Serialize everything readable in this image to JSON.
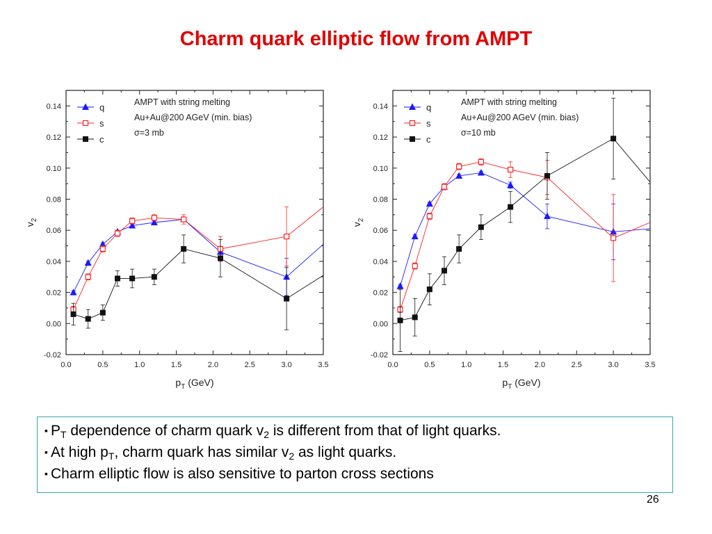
{
  "title": "Charm quark elliptic flow from AMPT",
  "charts": [
    {
      "annotation": [
        "AMPT with string melting",
        "Au+Au@200 AGeV (min. bias)",
        "σ=3 mb"
      ]
    },
    {
      "annotation": [
        "AMPT with string melting",
        "Au+Au@200 AGeV (min. bias)",
        "σ=10 mb"
      ]
    }
  ],
  "chart_data": [
    {
      "type": "line",
      "xlabel": "pT (GeV)",
      "xlabel_main": "p",
      "xlabel_sub": "T",
      "xlabel_rest": " (GeV)",
      "ylabel": "v2",
      "ylabel_main": "v",
      "ylabel_sub": "2",
      "xlim": [
        0.0,
        3.5
      ],
      "ylim": [
        -0.02,
        0.15
      ],
      "xticks": [
        "0.0",
        "0.5",
        "1.0",
        "1.5",
        "2.0",
        "2.5",
        "3.0",
        "3.5"
      ],
      "yticks": [
        "-0.02",
        "0.00",
        "0.02",
        "0.04",
        "0.06",
        "0.08",
        "0.10",
        "0.12",
        "0.14"
      ],
      "legend_position": "top-left",
      "series": [
        {
          "name": "q",
          "color": "#1a1aff",
          "marker": "triangle",
          "x": [
            0.1,
            0.3,
            0.5,
            0.7,
            0.9,
            1.2,
            1.6,
            2.1,
            3.0,
            3.5
          ],
          "y": [
            0.02,
            0.039,
            0.051,
            0.059,
            0.063,
            0.065,
            0.067,
            0.046,
            0.03,
            0.051
          ],
          "err": [
            0.001,
            0.001,
            0.001,
            0.001,
            0.001,
            0.001,
            0.001,
            0.003,
            0.012,
            0
          ]
        },
        {
          "name": "s",
          "color": "#ff2020",
          "marker": "open-square",
          "x": [
            0.1,
            0.3,
            0.5,
            0.7,
            0.9,
            1.2,
            1.6,
            2.1,
            3.0,
            3.5
          ],
          "y": [
            0.009,
            0.03,
            0.048,
            0.058,
            0.066,
            0.068,
            0.067,
            0.048,
            0.056,
            0.075
          ],
          "err": [
            0.002,
            0.002,
            0.002,
            0.002,
            0.002,
            0.002,
            0.003,
            0.008,
            0.019,
            0
          ]
        },
        {
          "name": "c",
          "color": "#111111",
          "marker": "filled-square",
          "x": [
            0.1,
            0.3,
            0.5,
            0.7,
            0.9,
            1.2,
            1.6,
            2.1,
            3.0,
            3.5
          ],
          "y": [
            0.006,
            0.003,
            0.007,
            0.029,
            0.029,
            0.03,
            0.048,
            0.042,
            0.016,
            0.031
          ],
          "err": [
            0.007,
            0.006,
            0.005,
            0.005,
            0.006,
            0.005,
            0.009,
            0.012,
            0.02,
            0
          ]
        }
      ]
    },
    {
      "type": "line",
      "xlabel": "pT (GeV)",
      "xlabel_main": "p",
      "xlabel_sub": "T",
      "xlabel_rest": " (GeV)",
      "ylabel": "v2",
      "ylabel_main": "v",
      "ylabel_sub": "2",
      "xlim": [
        0.0,
        3.5
      ],
      "ylim": [
        -0.02,
        0.15
      ],
      "xticks": [
        "0.0",
        "0.5",
        "1.0",
        "1.5",
        "2.0",
        "2.5",
        "3.0",
        "3.5"
      ],
      "yticks": [
        "-0.02",
        "0.00",
        "0.02",
        "0.04",
        "0.06",
        "0.08",
        "0.10",
        "0.12",
        "0.14"
      ],
      "legend_position": "top-left",
      "series": [
        {
          "name": "q",
          "color": "#1a1aff",
          "marker": "triangle",
          "x": [
            0.1,
            0.3,
            0.5,
            0.7,
            0.9,
            1.2,
            1.6,
            2.1,
            3.0,
            3.5
          ],
          "y": [
            0.024,
            0.056,
            0.077,
            0.088,
            0.095,
            0.097,
            0.089,
            0.069,
            0.059,
            0.061
          ],
          "err": [
            0.001,
            0.001,
            0.001,
            0.001,
            0.001,
            0.001,
            0.002,
            0.008,
            0.018,
            0
          ]
        },
        {
          "name": "s",
          "color": "#ff2020",
          "marker": "open-square",
          "x": [
            0.1,
            0.3,
            0.5,
            0.7,
            0.9,
            1.2,
            1.6,
            2.1,
            3.0,
            3.5
          ],
          "y": [
            0.009,
            0.037,
            0.069,
            0.088,
            0.101,
            0.104,
            0.099,
            0.094,
            0.055,
            0.065
          ],
          "err": [
            0.002,
            0.002,
            0.002,
            0.002,
            0.002,
            0.002,
            0.005,
            0.011,
            0.028,
            0
          ]
        },
        {
          "name": "c",
          "color": "#111111",
          "marker": "filled-square",
          "x": [
            0.1,
            0.3,
            0.5,
            0.7,
            0.9,
            1.2,
            1.6,
            2.1,
            3.0,
            3.5
          ],
          "y": [
            0.002,
            0.004,
            0.022,
            0.034,
            0.048,
            0.062,
            0.075,
            0.095,
            0.119,
            0.091
          ],
          "err": [
            0.02,
            0.012,
            0.01,
            0.009,
            0.009,
            0.008,
            0.01,
            0.015,
            0.026,
            0
          ]
        }
      ]
    }
  ],
  "bullets": [
    {
      "pre": "P",
      "sub1": "T",
      "mid": " dependence of charm quark v",
      "sub2": "2",
      "post": " is different from that of light quarks."
    },
    {
      "pre": "At high p",
      "sub1": "T",
      "mid": ", charm quark has similar v",
      "sub2": "2",
      "post": " as light quarks."
    },
    {
      "text": "Charm elliptic flow is also sensitive to parton cross sections"
    }
  ],
  "bullet_glyph": "▪",
  "page_number": "26"
}
